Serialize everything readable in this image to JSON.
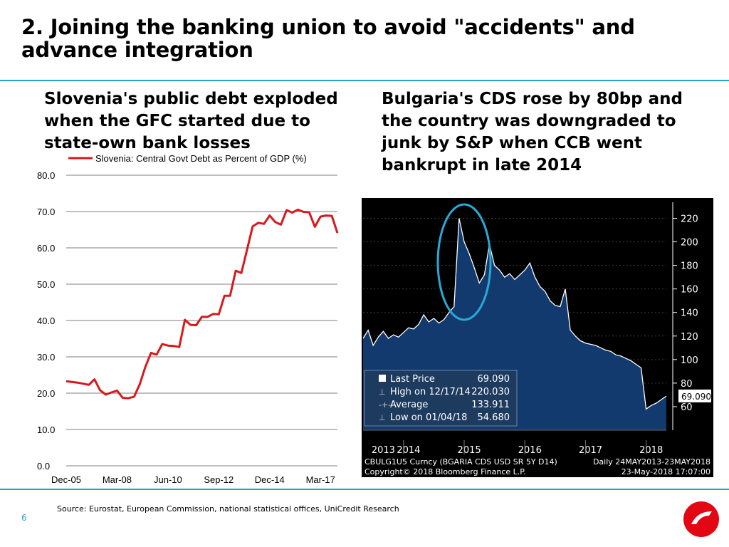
{
  "slide": {
    "title": "2. Joining the banking union to avoid \"accidents\" and advance integration",
    "left_heading": "Slovenia's public debt exploded when the GFC started due to state-own bank losses",
    "right_heading": "Bulgaria's CDS rose by 80bp and the country was downgraded to junk by S&P when CCB went bankrupt in late 2014",
    "source": "Source: Eurostat, European Commission, national statistical offices, UniCredit Research",
    "page_number": "6",
    "accent_color": "#2aa3c8",
    "logo_color": "#e30613"
  },
  "chart_data": [
    {
      "type": "line",
      "legend": "Slovenia: Central Govt Debt as Percent of GDP (%)",
      "line_color": "#d7191c",
      "x_ticks": [
        "Dec-05",
        "Mar-08",
        "Jun-10",
        "Sep-12",
        "Dec-14",
        "Mar-17"
      ],
      "y_ticks": [
        "0.0",
        "10.0",
        "20.0",
        "30.0",
        "40.0",
        "50.0",
        "60.0",
        "70.0",
        "80.0"
      ],
      "ylim": [
        0,
        80
      ],
      "x_start": "Dec-05",
      "frequency": "quarterly",
      "values": [
        23.3,
        23.1,
        22.9,
        22.6,
        22.3,
        23.8,
        20.8,
        19.6,
        20.2,
        20.7,
        18.7,
        18.6,
        19.0,
        22.4,
        27.2,
        31.1,
        30.6,
        33.5,
        33.1,
        33.0,
        32.7,
        40.2,
        38.8,
        38.7,
        41.0,
        41.0,
        41.8,
        41.7,
        46.8,
        46.8,
        53.7,
        53.1,
        59.5,
        65.9,
        66.9,
        66.6,
        68.9,
        67.1,
        66.4,
        70.4,
        69.7,
        70.5,
        69.9,
        69.8,
        65.8,
        68.6,
        68.9,
        68.8,
        64.1
      ],
      "grid": true
    },
    {
      "type": "area",
      "series_color": "#123a6e",
      "background": "#000000",
      "x_ticks": [
        "2013",
        "2014",
        "2015",
        "2016",
        "2017",
        "2018"
      ],
      "y_ticks": [
        "60",
        "80",
        "100",
        "120",
        "140",
        "160",
        "180",
        "200",
        "220"
      ],
      "ylim": [
        40,
        230
      ],
      "last_value_label": "69.090",
      "stats": [
        {
          "label": "Last Price",
          "value": "69.090"
        },
        {
          "label": "High on 12/17/14",
          "value": "220.030"
        },
        {
          "label": "Average",
          "value": "133.911"
        },
        {
          "label": "Low on 01/04/18",
          "value": "54.680"
        }
      ],
      "footer_left": "CBULG1U5 Curncy (BGARIA CDS USD SR 5Y D14)",
      "footer_right": "Daily 24MAY2013-23MAY2018",
      "footer_copyright": "Copyright© 2018 Bloomberg Finance L.P.",
      "footer_timestamp": "23-May-2018 17:07:00",
      "highlight": "ellipse around Dec-2014 spike",
      "values": [
        {
          "x": "2013-05",
          "y": 118
        },
        {
          "x": "2013-06",
          "y": 125
        },
        {
          "x": "2013-07",
          "y": 112
        },
        {
          "x": "2013-08",
          "y": 119
        },
        {
          "x": "2013-09",
          "y": 124
        },
        {
          "x": "2013-10",
          "y": 118
        },
        {
          "x": "2013-11",
          "y": 121
        },
        {
          "x": "2013-12",
          "y": 119
        },
        {
          "x": "2014-01",
          "y": 123
        },
        {
          "x": "2014-02",
          "y": 127
        },
        {
          "x": "2014-03",
          "y": 126
        },
        {
          "x": "2014-04",
          "y": 130
        },
        {
          "x": "2014-05",
          "y": 138
        },
        {
          "x": "2014-06",
          "y": 132
        },
        {
          "x": "2014-07",
          "y": 135
        },
        {
          "x": "2014-08",
          "y": 131
        },
        {
          "x": "2014-09",
          "y": 134
        },
        {
          "x": "2014-10",
          "y": 140
        },
        {
          "x": "2014-11",
          "y": 145
        },
        {
          "x": "2014-12",
          "y": 220
        },
        {
          "x": "2015-01",
          "y": 200
        },
        {
          "x": "2015-02",
          "y": 190
        },
        {
          "x": "2015-03",
          "y": 178
        },
        {
          "x": "2015-04",
          "y": 165
        },
        {
          "x": "2015-05",
          "y": 172
        },
        {
          "x": "2015-06",
          "y": 198
        },
        {
          "x": "2015-07",
          "y": 180
        },
        {
          "x": "2015-08",
          "y": 176
        },
        {
          "x": "2015-09",
          "y": 170
        },
        {
          "x": "2015-10",
          "y": 173
        },
        {
          "x": "2015-11",
          "y": 168
        },
        {
          "x": "2015-12",
          "y": 172
        },
        {
          "x": "2016-01",
          "y": 176
        },
        {
          "x": "2016-02",
          "y": 182
        },
        {
          "x": "2016-03",
          "y": 170
        },
        {
          "x": "2016-04",
          "y": 162
        },
        {
          "x": "2016-05",
          "y": 158
        },
        {
          "x": "2016-06",
          "y": 150
        },
        {
          "x": "2016-07",
          "y": 146
        },
        {
          "x": "2016-08",
          "y": 145
        },
        {
          "x": "2016-09",
          "y": 160
        },
        {
          "x": "2016-10",
          "y": 125
        },
        {
          "x": "2016-11",
          "y": 120
        },
        {
          "x": "2016-12",
          "y": 116
        },
        {
          "x": "2017-01",
          "y": 114
        },
        {
          "x": "2017-02",
          "y": 113
        },
        {
          "x": "2017-03",
          "y": 112
        },
        {
          "x": "2017-04",
          "y": 110
        },
        {
          "x": "2017-05",
          "y": 108
        },
        {
          "x": "2017-06",
          "y": 107
        },
        {
          "x": "2017-07",
          "y": 104
        },
        {
          "x": "2017-08",
          "y": 103
        },
        {
          "x": "2017-09",
          "y": 101
        },
        {
          "x": "2017-10",
          "y": 99
        },
        {
          "x": "2017-11",
          "y": 96
        },
        {
          "x": "2017-12",
          "y": 93
        },
        {
          "x": "2018-01",
          "y": 58
        },
        {
          "x": "2018-02",
          "y": 61
        },
        {
          "x": "2018-03",
          "y": 63
        },
        {
          "x": "2018-04",
          "y": 66
        },
        {
          "x": "2018-05",
          "y": 69
        }
      ]
    }
  ]
}
